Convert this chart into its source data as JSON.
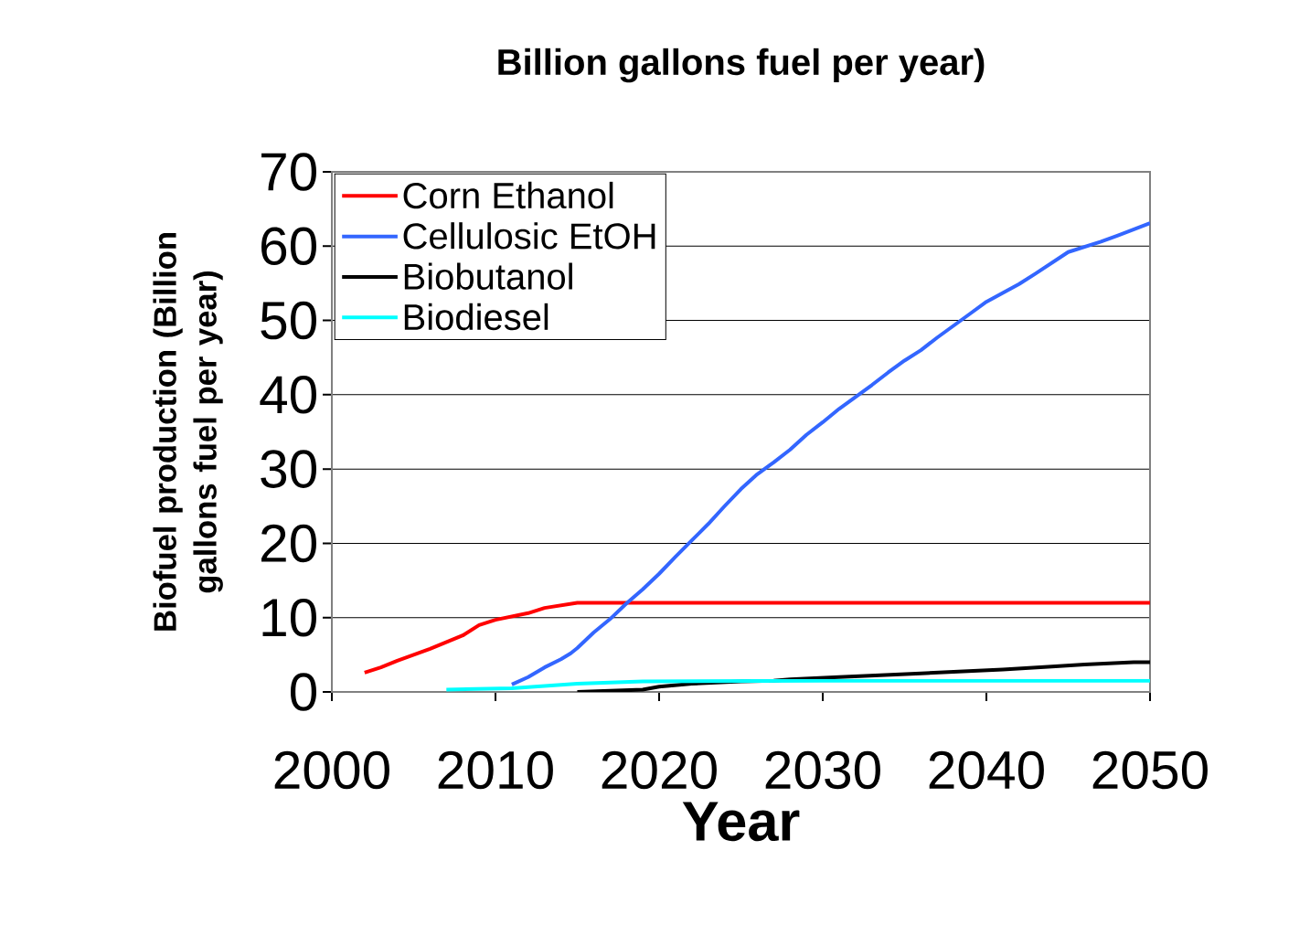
{
  "chart_data": {
    "type": "line",
    "title": "Billion gallons fuel per year)",
    "xlabel": "Year",
    "ylabel": "Biofuel production (Billion gallons fuel per year)",
    "xlim": [
      2000,
      2050
    ],
    "xticks": [
      2000,
      2010,
      2020,
      2030,
      2040,
      2050
    ],
    "ylim": [
      0,
      70
    ],
    "yticks": [
      0,
      10,
      20,
      30,
      40,
      50,
      60,
      70
    ],
    "grid": "y",
    "legend": "top left",
    "marker": "none",
    "line_style": "solid",
    "series": [
      {
        "name": "Corn Ethanol",
        "color": "#ff0000",
        "x": [
          2002,
          2003,
          2004,
          2006,
          2008,
          2009,
          2010,
          2012,
          2013,
          2015,
          2020,
          2030,
          2040,
          2050
        ],
        "values": [
          2.6,
          3.3,
          4.2,
          5.8,
          7.6,
          9,
          9.7,
          10.6,
          11.3,
          12,
          12,
          12,
          12,
          12
        ]
      },
      {
        "name": "Cellulosic EtOH",
        "color": "#3366ff",
        "x": [
          2011,
          2012,
          2013,
          2014,
          2014.6,
          2015,
          2016,
          2017,
          2018,
          2019,
          2020,
          2021,
          2022,
          2023,
          2024,
          2025,
          2026,
          2027,
          2028,
          2029,
          2030,
          2031,
          2032,
          2033,
          2034,
          2035,
          2036,
          2037,
          2038,
          2039,
          2040,
          2042,
          2043,
          2045,
          2047,
          2048,
          2050
        ],
        "values": [
          1,
          2,
          3.3,
          4.4,
          5.2,
          5.9,
          8,
          9.8,
          11.9,
          13.8,
          15.9,
          18.2,
          20.4,
          22.6,
          25,
          27.3,
          29.3,
          30.9,
          32.6,
          34.6,
          36.3,
          38.1,
          39.7,
          41.3,
          43,
          44.6,
          46,
          47.7,
          49.3,
          50.9,
          52.5,
          54.9,
          56.3,
          59.2,
          60.6,
          61.4,
          63.1
        ]
      },
      {
        "name": "Biobutanol",
        "color": "#000000",
        "x": [
          2015,
          2019,
          2020,
          2022,
          2025,
          2027,
          2028,
          2031,
          2036,
          2041,
          2044,
          2046,
          2049,
          2050
        ],
        "values": [
          0,
          0.3,
          0.7,
          1.1,
          1.4,
          1.5,
          1.7,
          2,
          2.5,
          3,
          3.4,
          3.7,
          4,
          4
        ]
      },
      {
        "name": "Biodiesel",
        "color": "#00ffff",
        "x": [
          2007,
          2011,
          2015,
          2019,
          2030,
          2040,
          2050
        ],
        "values": [
          0.3,
          0.5,
          1.1,
          1.4,
          1.5,
          1.5,
          1.5
        ]
      }
    ]
  }
}
